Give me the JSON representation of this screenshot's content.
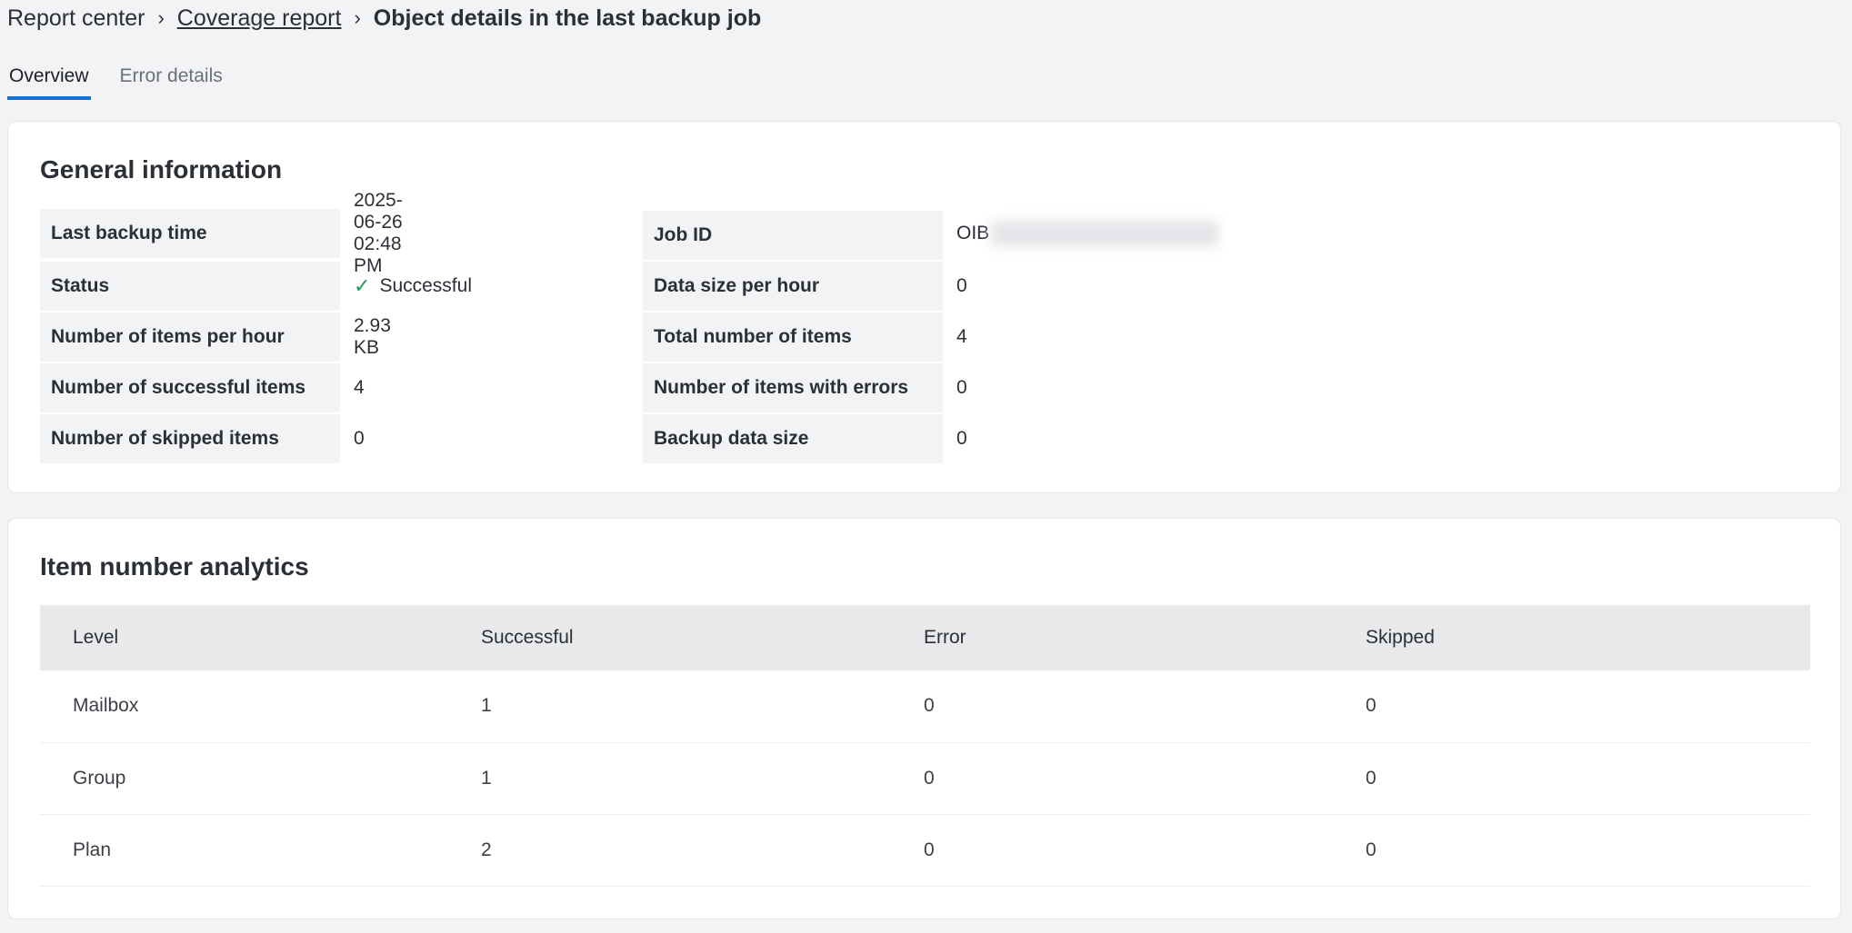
{
  "breadcrumb": {
    "items": [
      "Report center",
      "Coverage report",
      "Object details in the last backup job"
    ]
  },
  "tabs": [
    "Overview",
    "Error details"
  ],
  "general": {
    "title": "General information",
    "left": [
      {
        "label": "Last backup time",
        "value": "2025-06-26 02:48 PM"
      },
      {
        "label": "Status",
        "value": "Successful"
      },
      {
        "label": "Number of items per hour",
        "value": "2.93 KB"
      },
      {
        "label": "Number of successful items",
        "value": "4"
      },
      {
        "label": "Number of skipped items",
        "value": "0"
      }
    ],
    "right": [
      {
        "label": "Job ID",
        "value": "OIB"
      },
      {
        "label": "Data size per hour",
        "value": "0"
      },
      {
        "label": "Total number of items",
        "value": "4"
      },
      {
        "label": "Number of items with errors",
        "value": "0"
      },
      {
        "label": "Backup data size",
        "value": "0"
      }
    ]
  },
  "analytics": {
    "title": "Item number analytics",
    "columns": [
      "Level",
      "Successful",
      "Error",
      "Skipped"
    ],
    "rows": [
      [
        "Mailbox",
        "1",
        "0",
        "0"
      ],
      [
        "Group",
        "1",
        "0",
        "0"
      ],
      [
        "Plan",
        "2",
        "0",
        "0"
      ]
    ]
  },
  "colors": {
    "accent": "#1470d2",
    "success": "#1f9d55"
  }
}
